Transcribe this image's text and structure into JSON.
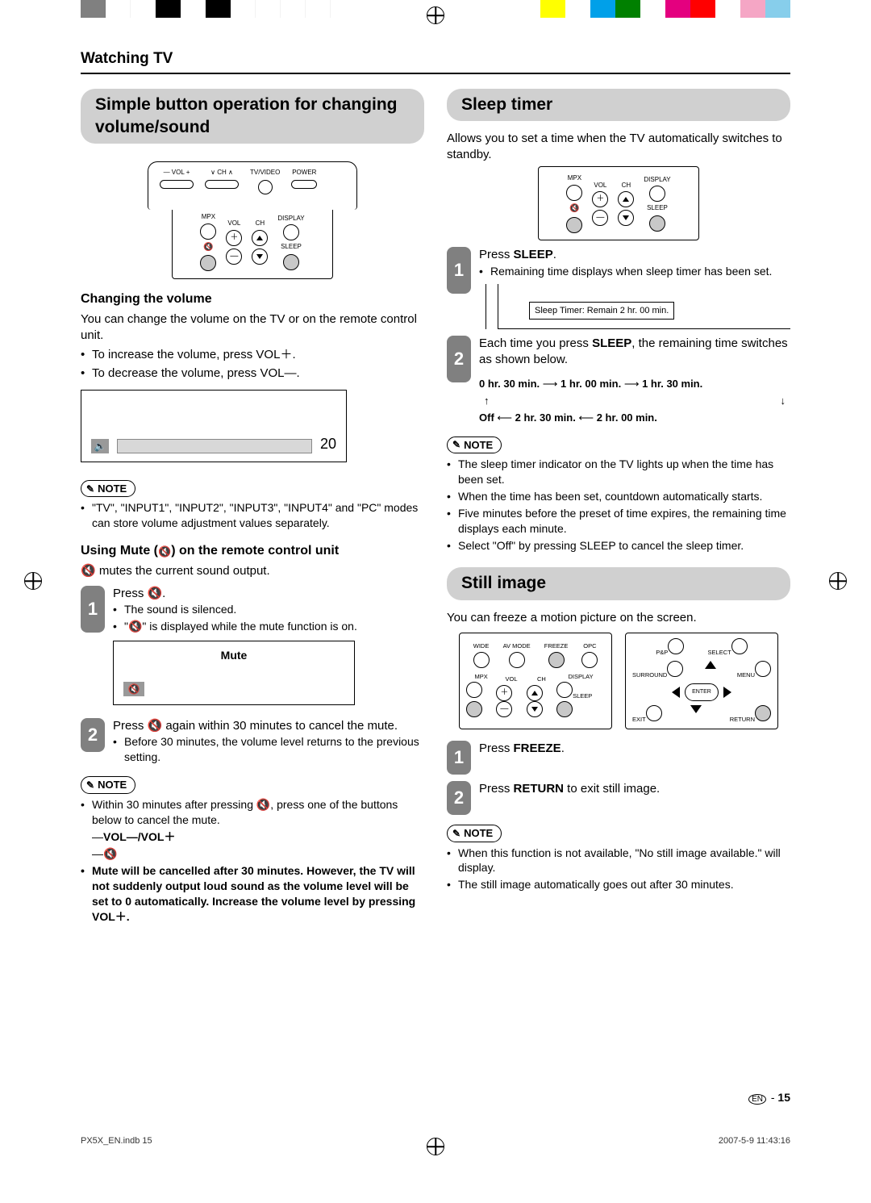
{
  "colorbar_left": [
    "#808080",
    "#ffffff",
    "#ffffff",
    "#000000",
    "#ffffff",
    "#000000",
    "#ffffff",
    "#ffffff",
    "#ffffff",
    "#ffffff"
  ],
  "colorbar_right": [
    "#ffff00",
    "#ffffff",
    "#00a0e9",
    "#008000",
    "#ffffff",
    "#e4007f",
    "#ff0000",
    "#ffffff",
    "#f5a6c5",
    "#87ceeb"
  ],
  "header": "Watching TV",
  "pageNumLabel": "15",
  "enBadge": "EN",
  "printFile": "PX5X_EN.indb   15",
  "printDate": "2007-5-9   11:43:16",
  "left": {
    "title": "Simple button operation for changing volume/sound",
    "tvLabels": {
      "vol": "— VOL +",
      "ch": "∨ CH ∧",
      "tvvideo": "TV/VIDEO",
      "power": "POWER"
    },
    "remoteLabels": {
      "mpx": "MPX",
      "vol": "VOL",
      "ch": "CH",
      "display": "DISPLAY",
      "sleep": "SLEEP",
      "mute": "🔇"
    },
    "changingHead": "Changing the volume",
    "changingText": "You can change the volume on the TV or on the remote control unit.",
    "changingBullets": [
      "To increase the volume, press VOL＋.",
      "To decrease the volume, press VOL—."
    ],
    "volValue": "20",
    "note1": [
      "\"TV\", \"INPUT1\", \"INPUT2\", \"INPUT3\", \"INPUT4\" and \"PC\" modes can store volume adjustment values separately."
    ],
    "muteHead": "Using Mute (🔇) on the remote control unit",
    "muteText": "🔇 mutes the current sound output.",
    "step1": {
      "lead": "Press 🔇.",
      "bullets": [
        "The sound is silenced.",
        "\"🔇\" is displayed while the mute function is on."
      ],
      "muteLabel": "Mute"
    },
    "step2": {
      "lead": "Press 🔇 again within 30 minutes to cancel the mute.",
      "bullets": [
        "Before 30 minutes, the volume level returns to the previous setting."
      ]
    },
    "note2head": "NOTE",
    "note2": {
      "line1": "Within 30 minutes after pressing 🔇, press one of the buttons below to cancel the mute.",
      "dashes": [
        "VOL—/VOL＋",
        "🔇"
      ],
      "bold": "Mute will be cancelled after 30 minutes. However, the TV will not suddenly output loud sound as the volume level will be set to 0 automatically. Increase the volume level by pressing VOL＋."
    }
  },
  "right": {
    "sleepTitle": "Sleep timer",
    "sleepIntro": "Allows you to set a time when the TV automatically switches to standby.",
    "step1": {
      "lead": "Press SLEEP.",
      "bullets": [
        "Remaining time displays when sleep timer has been set."
      ],
      "sleepBox": "Sleep Timer: Remain 2 hr. 00 min."
    },
    "step2lead": "Each time you press SLEEP, the remaining time switches as shown below.",
    "cycleTop": [
      "0 hr. 30 min.",
      "1 hr. 00 min.",
      "1 hr. 30 min."
    ],
    "cycleBot": [
      "Off",
      "2 hr. 30 min.",
      "2 hr. 00 min."
    ],
    "sleepNotes": [
      "The sleep timer indicator on the TV lights up when the time has been set.",
      "When the time has been set, countdown automatically starts.",
      "Five minutes before the preset of time expires, the remaining time displays each minute.",
      "Select \"Off\" by pressing SLEEP to cancel the sleep timer."
    ],
    "stillTitle": "Still image",
    "stillIntro": "You can freeze a motion picture on the screen.",
    "wideLabels": {
      "wide": "WIDE",
      "avmode": "AV MODE",
      "freeze": "FREEZE",
      "opc": "OPC"
    },
    "navLabels": {
      "pp": "P&P",
      "select": "SELECT",
      "surround": "SURROUND",
      "menu": "MENU",
      "enter": "ENTER",
      "exit": "EXIT",
      "return": "RETURN"
    },
    "stillStep1": "Press FREEZE.",
    "stillStep2": "Press RETURN to exit still image.",
    "stillNotes": [
      "When this function is not available, \"No still image available.\" will display.",
      "The still image automatically goes out after 30 minutes."
    ]
  },
  "noteLabel": "NOTE"
}
